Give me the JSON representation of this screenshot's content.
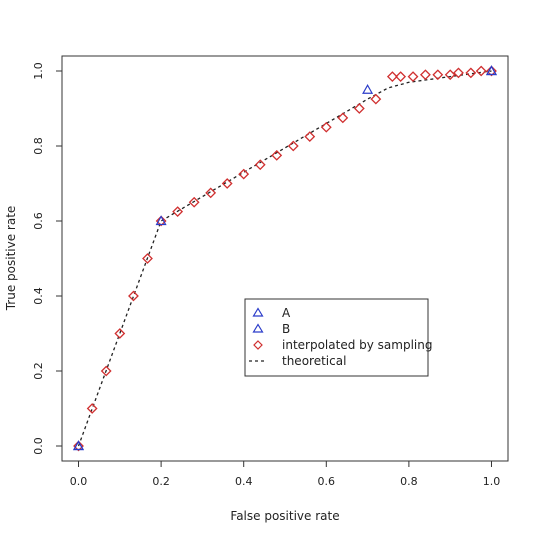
{
  "chart_data": {
    "type": "scatter",
    "xlabel": "False positive rate",
    "ylabel": "True positive rate",
    "xlim": [
      -0.04,
      1.04
    ],
    "ylim": [
      -0.04,
      1.04
    ],
    "xticks": [
      "0.0",
      "0.2",
      "0.4",
      "0.6",
      "0.8",
      "1.0"
    ],
    "yticks": [
      "0.0",
      "0.2",
      "0.4",
      "0.6",
      "0.8",
      "1.0"
    ],
    "grid": false,
    "legend_position": "center-right",
    "series": [
      {
        "name": "A",
        "marker": "triangle",
        "color": "#2b3cc9",
        "x": [
          0.0,
          0.2,
          1.0
        ],
        "y": [
          0.0,
          0.6,
          1.0
        ]
      },
      {
        "name": "B",
        "marker": "triangle",
        "color": "#2b3cc9",
        "x": [
          0.0,
          0.7,
          1.0
        ],
        "y": [
          0.0,
          0.95,
          1.0
        ]
      },
      {
        "name": "interpolated by sampling",
        "marker": "diamond",
        "color": "#d03030",
        "x": [
          0.0,
          0.033,
          0.067,
          0.1,
          0.133,
          0.167,
          0.2,
          0.24,
          0.28,
          0.32,
          0.36,
          0.4,
          0.44,
          0.48,
          0.52,
          0.56,
          0.6,
          0.64,
          0.68,
          0.72,
          0.76,
          0.78,
          0.81,
          0.84,
          0.87,
          0.9,
          0.92,
          0.95,
          0.975,
          1.0
        ],
        "y": [
          0.0,
          0.1,
          0.2,
          0.3,
          0.4,
          0.5,
          0.6,
          0.625,
          0.65,
          0.675,
          0.7,
          0.725,
          0.75,
          0.775,
          0.8,
          0.825,
          0.85,
          0.875,
          0.9,
          0.925,
          0.985,
          0.985,
          0.985,
          0.99,
          0.99,
          0.99,
          0.995,
          0.995,
          1.0,
          1.0
        ]
      },
      {
        "name": "theoretical",
        "line_style": "dashed",
        "color": "#222222",
        "x": [
          0.0,
          0.2,
          0.7,
          0.75,
          0.8,
          0.9,
          1.0
        ],
        "y": [
          0.0,
          0.6,
          0.925,
          0.955,
          0.97,
          0.985,
          1.0
        ]
      }
    ]
  }
}
